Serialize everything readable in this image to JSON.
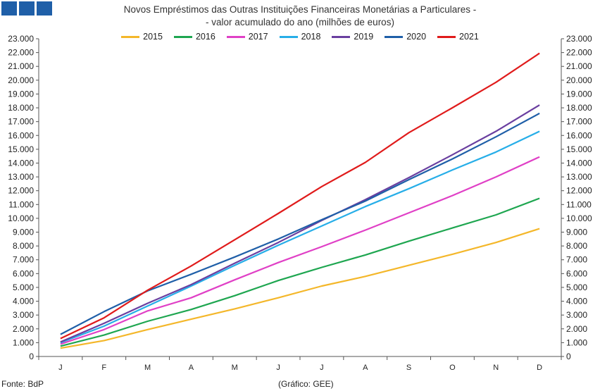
{
  "header": {
    "logo_icon": "three-blue-squares-logo"
  },
  "chart_data": {
    "type": "line",
    "title": "Novos Empréstimos das Outras Instituições Financeiras Monetárias a Particulares -",
    "subtitle": "- valor acumulado do ano (milhões de euros)",
    "categories": [
      "J",
      "F",
      "M",
      "A",
      "M",
      "J",
      "J",
      "A",
      "S",
      "O",
      "N",
      "D"
    ],
    "ylim": [
      0,
      23000
    ],
    "yticks": [
      "0",
      "1.000",
      "2.000",
      "3.000",
      "4.000",
      "5.000",
      "6.000",
      "7.000",
      "8.000",
      "9.000",
      "10.000",
      "11.000",
      "12.000",
      "13.000",
      "14.000",
      "15.000",
      "16.000",
      "17.000",
      "18.000",
      "19.000",
      "20.000",
      "21.000",
      "22.000",
      "23.000"
    ],
    "legend_position": "top",
    "grid": false,
    "series": [
      {
        "name": "2015",
        "color": "#f4b72a",
        "values": [
          600,
          1150,
          1950,
          2700,
          3450,
          4250,
          5100,
          5800,
          6600,
          7400,
          8250,
          9250
        ]
      },
      {
        "name": "2016",
        "color": "#1ea650",
        "values": [
          750,
          1550,
          2550,
          3400,
          4400,
          5500,
          6450,
          7350,
          8350,
          9300,
          10250,
          11450
        ]
      },
      {
        "name": "2017",
        "color": "#e040c6",
        "values": [
          900,
          1950,
          3300,
          4250,
          5550,
          6800,
          7950,
          9150,
          10400,
          11650,
          13000,
          14450
        ]
      },
      {
        "name": "2018",
        "color": "#27aee8",
        "values": [
          1000,
          2200,
          3650,
          5100,
          6600,
          8050,
          9450,
          10850,
          12150,
          13500,
          14800,
          16300
        ]
      },
      {
        "name": "2019",
        "color": "#6a3fa0",
        "values": [
          1050,
          2400,
          3850,
          5200,
          6750,
          8250,
          9850,
          11350,
          12950,
          14600,
          16300,
          18200
        ]
      },
      {
        "name": "2020",
        "color": "#1f5fa8",
        "values": [
          1600,
          3250,
          4750,
          5950,
          7200,
          8500,
          9900,
          11250,
          12800,
          14300,
          15900,
          17600
        ]
      },
      {
        "name": "2021",
        "color": "#e01b1b",
        "values": [
          1300,
          2800,
          4800,
          6550,
          8450,
          10350,
          12300,
          14050,
          16200,
          18000,
          19850,
          21950
        ]
      }
    ]
  },
  "footer": {
    "source": "Fonte: BdP",
    "credit": "(Gráfico: GEE)"
  }
}
